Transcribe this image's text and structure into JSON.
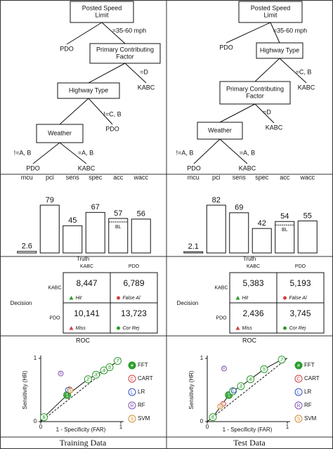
{
  "panels": [
    {
      "caption": "Training Data",
      "tree": {
        "nodes": [
          {
            "label": [
              "Posted Speed",
              "Limit"
            ]
          },
          {
            "label": [
              "PDO"
            ]
          },
          {
            "label": [
              "Primary Contributing",
              "Factor"
            ]
          },
          {
            "label": [
              "KABC"
            ]
          },
          {
            "label": [
              "Highway Type"
            ]
          },
          {
            "label": [
              "PDO"
            ]
          },
          {
            "label": [
              "Weather"
            ]
          },
          {
            "label": [
              "PDO"
            ]
          },
          {
            "label": [
              "KABC"
            ]
          }
        ],
        "edges": [
          {
            "from": 0,
            "to": 1
          },
          {
            "from": 0,
            "to": 2,
            "label": "=35-60 mph"
          },
          {
            "from": 2,
            "to": 4
          },
          {
            "from": 2,
            "to": 3,
            "label": "=D"
          },
          {
            "from": 4,
            "to": 6
          },
          {
            "from": 4,
            "to": 5,
            "label": "!=C, B"
          },
          {
            "from": 6,
            "to": 7,
            "label": "!=A, B"
          },
          {
            "from": 6,
            "to": 8,
            "label": "=A, B"
          }
        ]
      },
      "bar_chart": {
        "type": "bar",
        "categories": [
          "mcu",
          "pci",
          "sens",
          "spec",
          "acc",
          "wacc"
        ],
        "values": [
          2.6,
          79,
          45,
          67,
          57,
          56
        ],
        "annotation": "BL",
        "annotation_index": 4
      },
      "matrix": {
        "column_title": "Truth",
        "columns": [
          "KABC",
          "PDO"
        ],
        "row_title": "Decision",
        "rows": [
          "KABC",
          "PDO"
        ],
        "cells": [
          [
            {
              "value": "8,447",
              "label": "Hit"
            },
            {
              "value": "6,789",
              "label": "False Al"
            }
          ],
          [
            {
              "value": "10,141",
              "label": "Miss"
            },
            {
              "value": "13,723",
              "label": "Cor Rej"
            }
          ]
        ]
      },
      "roc_chart": {
        "type": "scatter",
        "title": "ROC",
        "x_label": "1 - Specificity (FAR)",
        "y_label": "Sensitivity (HR)",
        "xlim": [
          0,
          1
        ],
        "ylim": [
          0,
          1
        ],
        "xticks": [
          0,
          1
        ],
        "yticks": [
          0,
          1
        ],
        "series": [
          {
            "name": "FFT",
            "symbol": "#",
            "color": "#2a9d2a",
            "x": [
              0.04,
              0.33,
              0.59,
              0.69,
              0.79,
              0.86,
              0.96
            ],
            "values": [
              0.07,
              0.42,
              0.67,
              0.74,
              0.81,
              0.86,
              0.96
            ],
            "point_labels": [
              "6",
              "1",
              "2",
              "3",
              "4",
              "5",
              "7"
            ]
          },
          {
            "name": "CART",
            "symbol": "C",
            "color": "#d04040",
            "x": [
              0.36
            ],
            "values": [
              0.51
            ]
          },
          {
            "name": "LR",
            "symbol": "L",
            "color": "#3050c0",
            "x": [
              0.34
            ],
            "values": [
              0.5
            ]
          },
          {
            "name": "RF",
            "symbol": "R",
            "color": "#8050b0",
            "x": [
              0.25
            ],
            "values": [
              0.76
            ]
          },
          {
            "name": "SVM",
            "symbol": "S",
            "color": "#d09030",
            "x": [
              0.37
            ],
            "values": [
              0.49
            ]
          }
        ]
      }
    },
    {
      "caption": "Test Data",
      "tree": {
        "nodes": [
          {
            "label": [
              "Posted Speed",
              "Limit"
            ]
          },
          {
            "label": [
              "PDO"
            ]
          },
          {
            "label": [
              "Highway Type"
            ]
          },
          {
            "label": [
              "KABC"
            ]
          },
          {
            "label": [
              "Primary Contributing",
              "Factor"
            ]
          },
          {
            "label": [
              "KABC"
            ]
          },
          {
            "label": [
              "Weather"
            ]
          },
          {
            "label": [
              "PDO"
            ]
          },
          {
            "label": [
              "KABC"
            ]
          }
        ],
        "edges": [
          {
            "from": 0,
            "to": 1
          },
          {
            "from": 0,
            "to": 2,
            "label": "=35-60 mph"
          },
          {
            "from": 2,
            "to": 4
          },
          {
            "from": 2,
            "to": 3,
            "label": "=C, B"
          },
          {
            "from": 4,
            "to": 6
          },
          {
            "from": 4,
            "to": 5,
            "label": "=D"
          },
          {
            "from": 6,
            "to": 7,
            "label": "!=A, B"
          },
          {
            "from": 6,
            "to": 8,
            "label": "=A, B"
          }
        ]
      },
      "bar_chart": {
        "type": "bar",
        "categories": [
          "mcu",
          "pci",
          "sens",
          "spec",
          "acc",
          "wacc"
        ],
        "values": [
          2.1,
          82,
          69,
          42,
          54,
          55
        ],
        "annotation": "BL",
        "annotation_index": 4
      },
      "matrix": {
        "column_title": "Truth",
        "columns": [
          "KABC",
          "PDO"
        ],
        "row_title": "Decision",
        "rows": [
          "KABC",
          "PDO"
        ],
        "cells": [
          [
            {
              "value": "5,383",
              "label": "Hit"
            },
            {
              "value": "5,193",
              "label": "False Al"
            }
          ],
          [
            {
              "value": "2,436",
              "label": "Miss"
            },
            {
              "value": "3,745",
              "label": "Cor Rej"
            }
          ]
        ]
      },
      "roc_chart": {
        "type": "scatter",
        "title": "ROC",
        "x_label": "1 - Specificity (FAR)",
        "y_label": "Sensitivity (HR)",
        "xlim": [
          0,
          1
        ],
        "ylim": [
          0,
          1
        ],
        "xticks": [
          0,
          1
        ],
        "yticks": [
          0,
          1
        ],
        "series": [
          {
            "name": "FFT",
            "symbol": "#",
            "color": "#2a9d2a",
            "x": [
              0.07,
              0.27,
              0.32,
              0.42,
              0.54,
              0.71,
              0.93
            ],
            "values": [
              0.07,
              0.42,
              0.48,
              0.56,
              0.67,
              0.83,
              0.98
            ],
            "point_labels": [
              "6",
              "1",
              "2",
              "3",
              "4",
              "5",
              "7"
            ]
          },
          {
            "name": "CART",
            "symbol": "C",
            "color": "#d04040",
            "x": [
              0.2
            ],
            "values": [
              0.28
            ]
          },
          {
            "name": "LR",
            "symbol": "L",
            "color": "#3050c0",
            "x": [
              0.33
            ],
            "values": [
              0.49
            ]
          },
          {
            "name": "RF",
            "symbol": "R",
            "color": "#8050b0",
            "x": [
              0.21
            ],
            "values": [
              0.84
            ]
          },
          {
            "name": "SVM",
            "symbol": "S",
            "color": "#d09030",
            "x": [
              0.16
            ],
            "values": [
              0.24
            ]
          }
        ]
      }
    }
  ]
}
